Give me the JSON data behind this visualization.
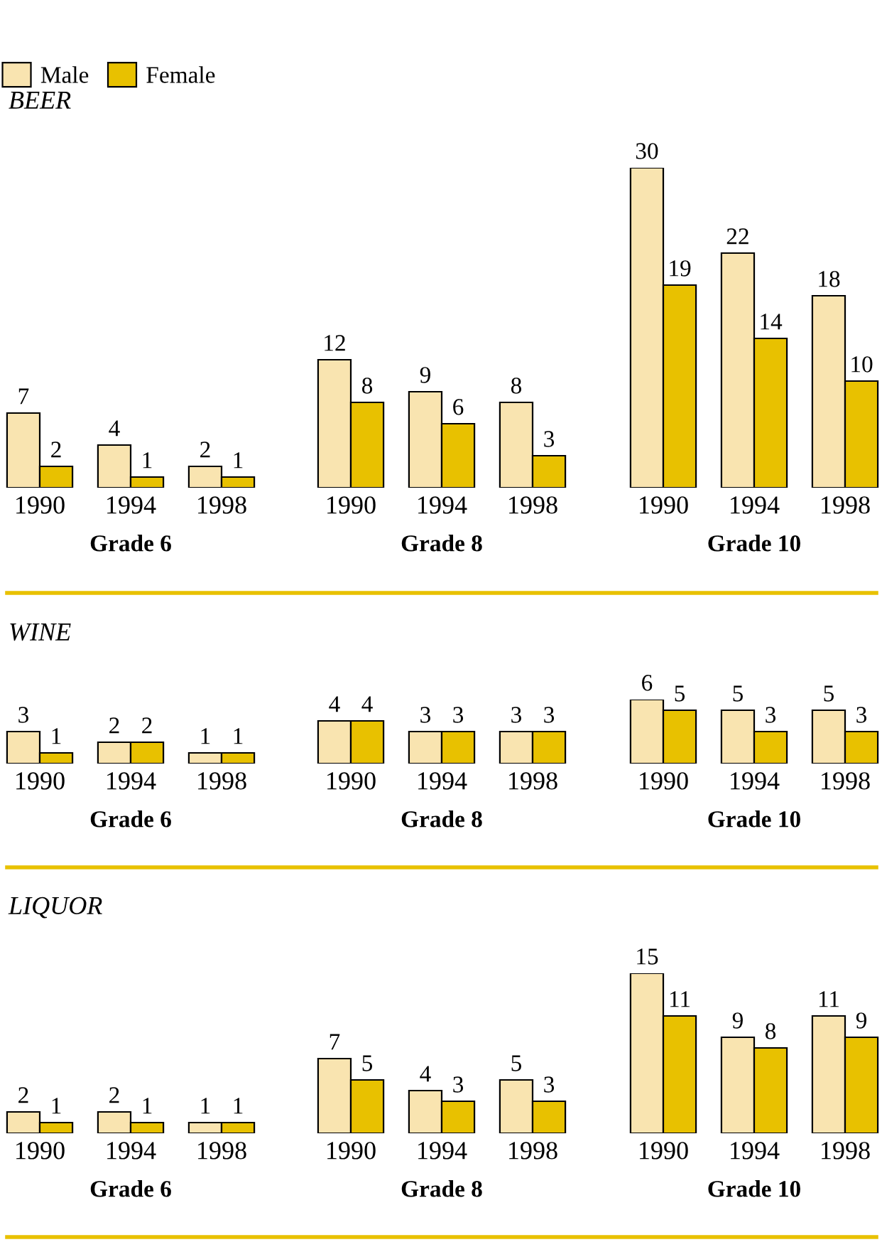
{
  "chart_data": [
    {
      "type": "bar",
      "title": "BEER",
      "xlabel": "Grade 6",
      "categories": [
        "1990",
        "1994",
        "1998"
      ],
      "data_labels": true,
      "legend": "top left",
      "series": [
        {
          "name": "Male",
          "color": "#f9e4b0",
          "values": [
            7,
            4,
            2
          ]
        },
        {
          "name": "Female",
          "color": "#e8c100",
          "values": [
            2,
            1,
            1
          ]
        }
      ]
    },
    {
      "type": "bar",
      "xlabel": "Grade 8",
      "categories": [
        "1990",
        "1994",
        "1998"
      ],
      "data_labels": true,
      "series": [
        {
          "color": "#f9e4b0",
          "values": [
            12,
            9,
            8
          ]
        },
        {
          "color": "#e8c100",
          "values": [
            8,
            6,
            3
          ]
        }
      ]
    },
    {
      "type": "bar",
      "xlabel": "Grade 10",
      "categories": [
        "1990",
        "1994",
        "1998"
      ],
      "data_labels": true,
      "series": [
        {
          "color": "#f9e4b0",
          "values": [
            30,
            22,
            18
          ]
        },
        {
          "color": "#e8c100",
          "values": [
            19,
            14,
            10
          ]
        }
      ]
    },
    {
      "type": "bar",
      "title": "WINE",
      "xlabel": "Grade 6",
      "categories": [
        "1990",
        "1994",
        "1998"
      ],
      "data_labels": true,
      "series": [
        {
          "color": "#f9e4b0",
          "values": [
            3,
            2,
            1
          ]
        },
        {
          "color": "#e8c100",
          "values": [
            1,
            2,
            1
          ]
        }
      ]
    },
    {
      "type": "bar",
      "xlabel": "Grade 8",
      "categories": [
        "1990",
        "1994",
        "1998"
      ],
      "data_labels": true,
      "series": [
        {
          "color": "#f9e4b0",
          "values": [
            4,
            3,
            3
          ]
        },
        {
          "color": "#e8c100",
          "values": [
            4,
            3,
            3
          ]
        }
      ]
    },
    {
      "type": "bar",
      "xlabel": "Grade 10",
      "categories": [
        "1990",
        "1994",
        "1998"
      ],
      "data_labels": true,
      "series": [
        {
          "color": "#f9e4b0",
          "values": [
            6,
            5,
            5
          ]
        },
        {
          "color": "#e8c100",
          "values": [
            5,
            3,
            3
          ]
        }
      ]
    },
    {
      "type": "bar",
      "title": "LIQUOR",
      "xlabel": "Grade 6",
      "categories": [
        "1990",
        "1994",
        "1998"
      ],
      "data_labels": true,
      "series": [
        {
          "color": "#f9e4b0",
          "values": [
            2,
            2,
            1
          ]
        },
        {
          "color": "#e8c100",
          "values": [
            1,
            1,
            1
          ]
        }
      ]
    },
    {
      "type": "bar",
      "xlabel": "Grade 8",
      "categories": [
        "1990",
        "1994",
        "1998"
      ],
      "data_labels": true,
      "series": [
        {
          "color": "#f9e4b0",
          "values": [
            7,
            4,
            5
          ]
        },
        {
          "color": "#e8c100",
          "values": [
            5,
            3,
            3
          ]
        }
      ]
    },
    {
      "type": "bar",
      "xlabel": "Grade 10",
      "categories": [
        "1990",
        "1994",
        "1998"
      ],
      "data_labels": true,
      "series": [
        {
          "color": "#f9e4b0",
          "values": [
            15,
            9,
            11
          ]
        },
        {
          "color": "#e8c100",
          "values": [
            11,
            8,
            9
          ]
        }
      ]
    }
  ]
}
